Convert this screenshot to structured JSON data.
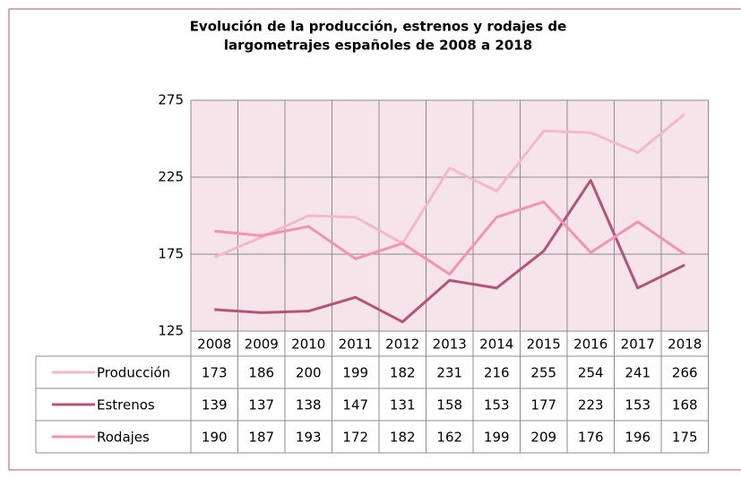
{
  "chart_data": {
    "type": "line",
    "title": [
      "Evolución de la producción, estrenos y rodajes de",
      "largometrajes españoles de 2008 a 2018"
    ],
    "categories": [
      "2008",
      "2009",
      "2010",
      "2011",
      "2012",
      "2013",
      "2014",
      "2015",
      "2016",
      "2017",
      "2018"
    ],
    "series": [
      {
        "name": "Producción",
        "color": "#f4b8cb",
        "values": [
          173,
          186,
          200,
          199,
          182,
          231,
          216,
          255,
          254,
          241,
          266
        ]
      },
      {
        "name": "Estrenos",
        "color": "#b5527b",
        "values": [
          139,
          137,
          138,
          147,
          131,
          158,
          153,
          177,
          223,
          153,
          168
        ]
      },
      {
        "name": "Rodajes",
        "color": "#f592b1",
        "values": [
          190,
          187,
          193,
          172,
          182,
          162,
          199,
          209,
          176,
          196,
          175
        ]
      }
    ],
    "ylim": [
      125,
      275
    ],
    "yticks": [
      125,
      175,
      225,
      275
    ],
    "grid": true,
    "data_table": true
  }
}
